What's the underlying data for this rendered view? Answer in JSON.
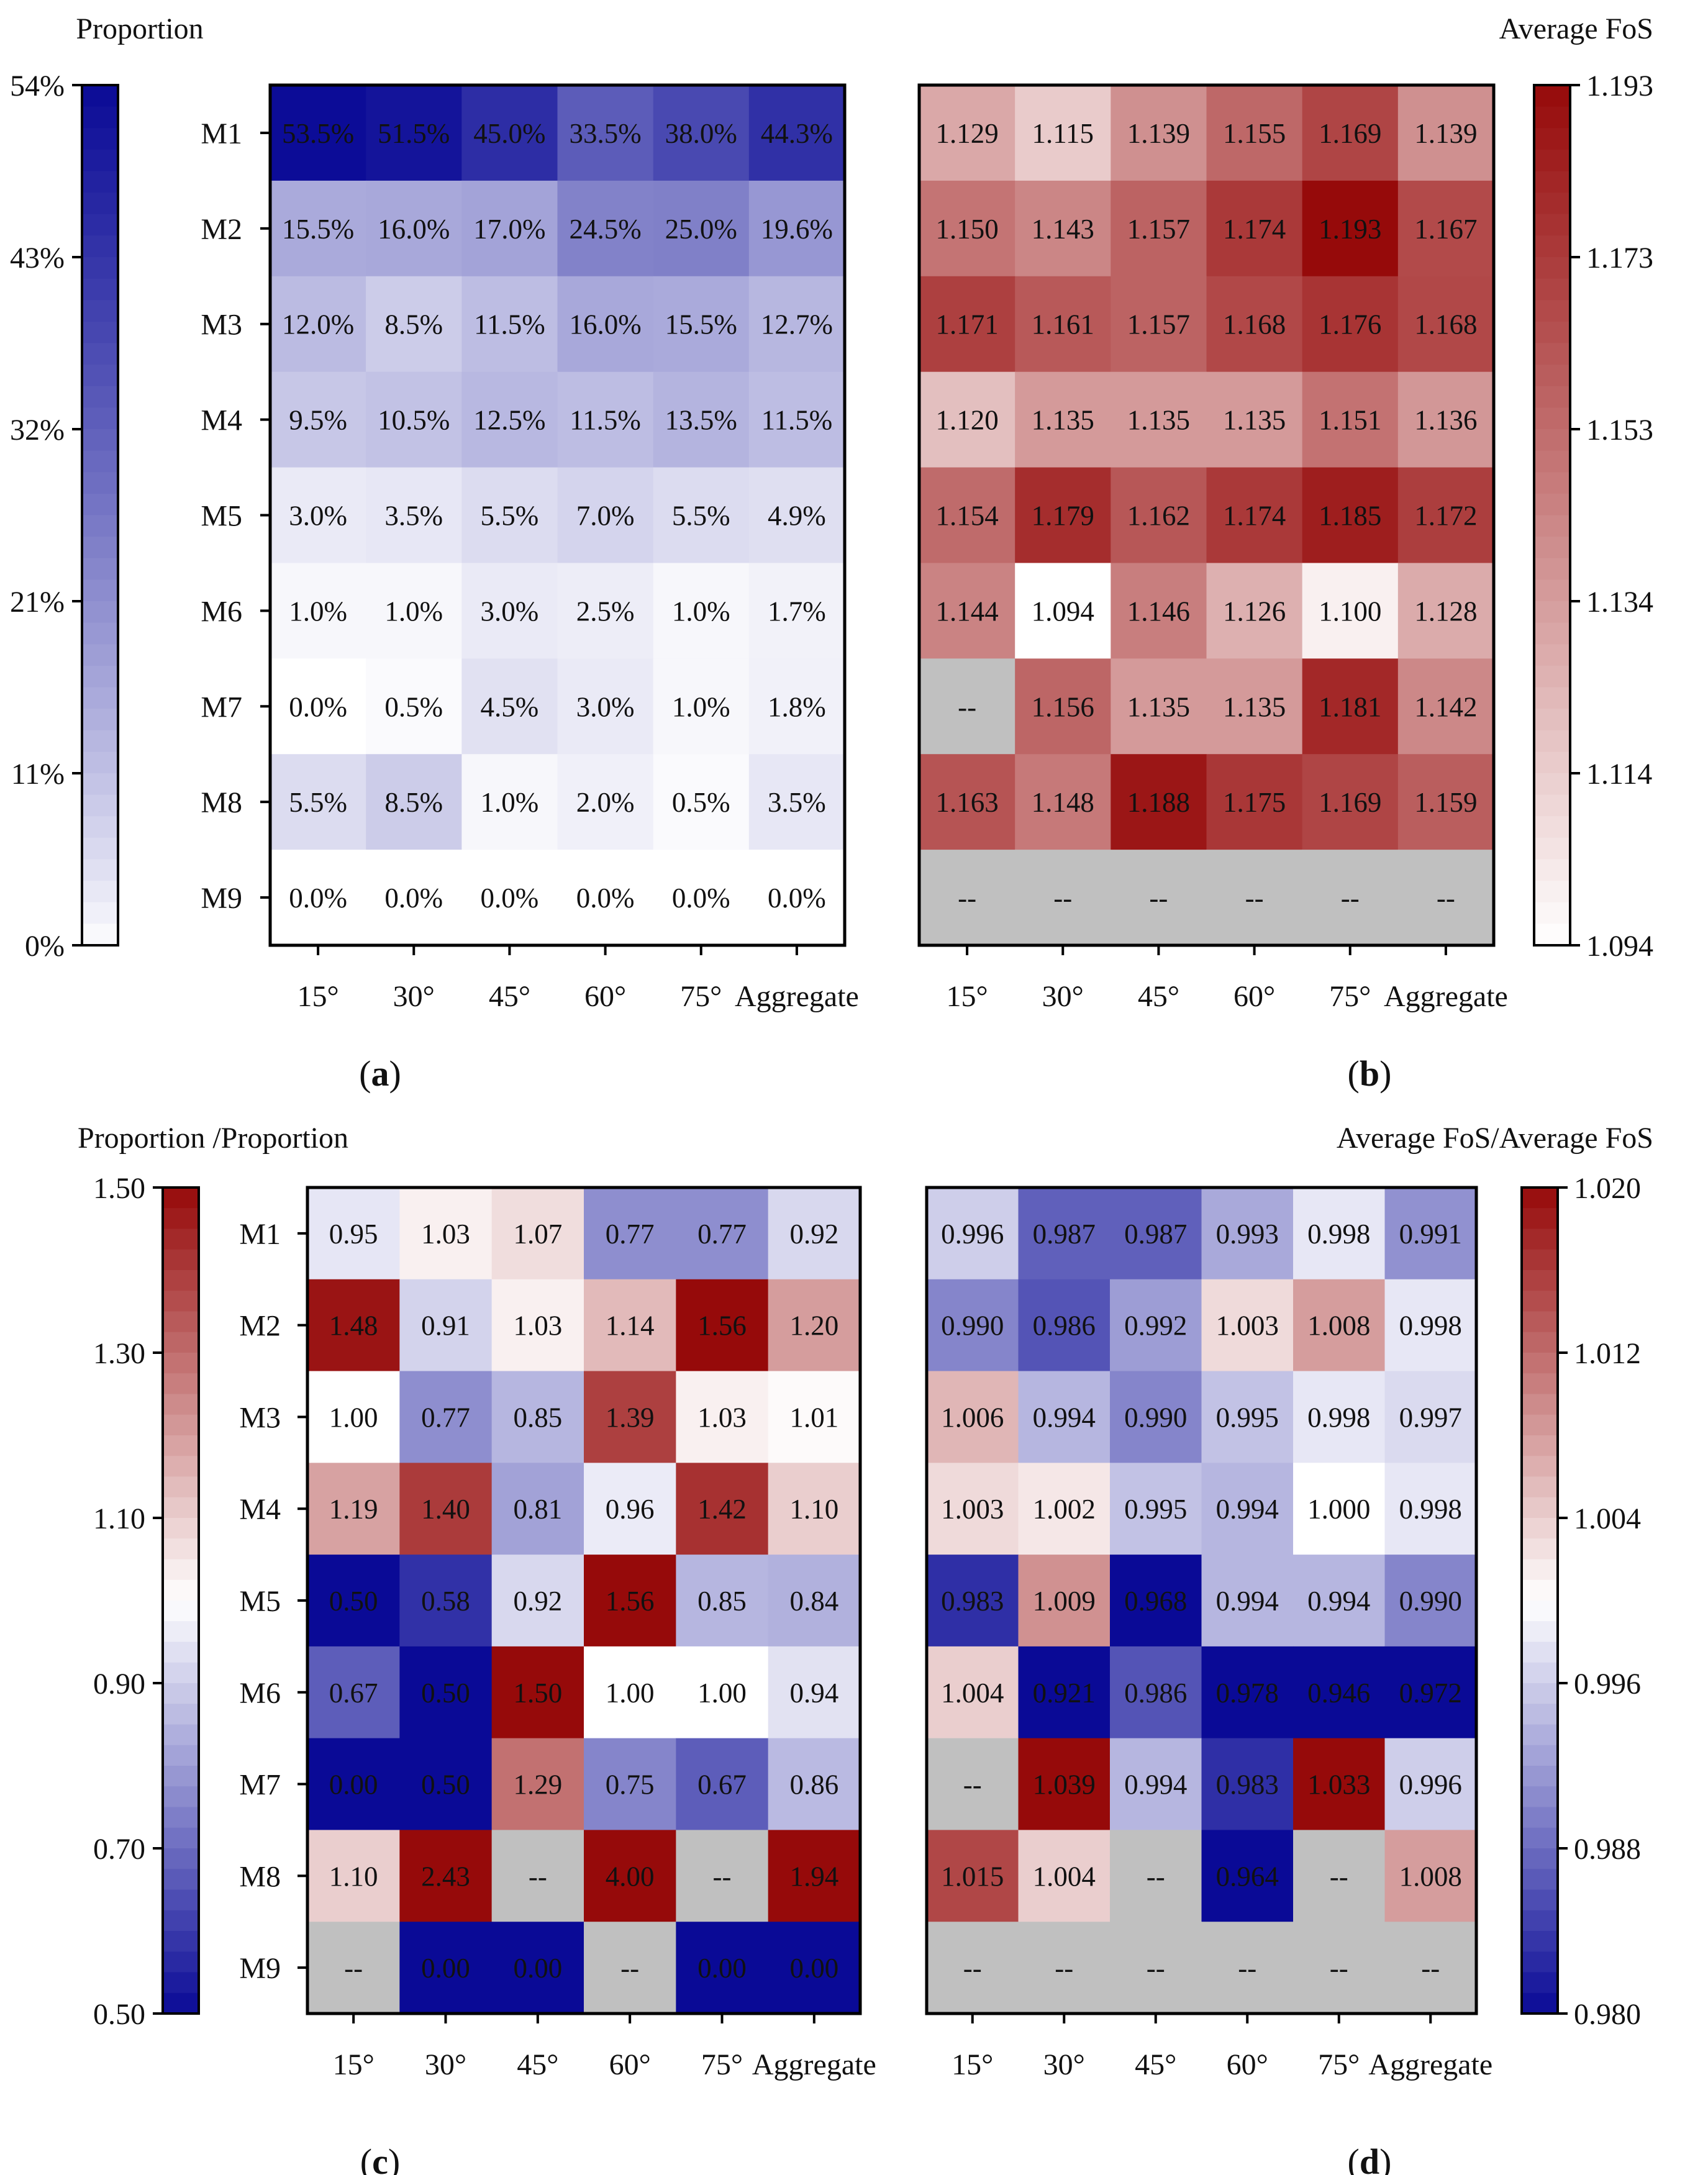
{
  "rows": [
    "M1",
    "M2",
    "M3",
    "M4",
    "M5",
    "M6",
    "M7",
    "M8",
    "M9"
  ],
  "cols": [
    "15°",
    "30°",
    "45°",
    "60°",
    "75°",
    "Aggregate"
  ],
  "chart_data": [
    {
      "panel": "a",
      "panel_label": "(a)",
      "type": "heatmap",
      "colorbar_title": "Proportion",
      "colorbar_ticks": [
        "54%",
        "43%",
        "32%",
        "21%",
        "11%",
        "0%"
      ],
      "colorbar_range": [
        0,
        54
      ],
      "colorbar_side": "left",
      "colormap": "white-blue",
      "values": [
        [
          53.5,
          51.5,
          45.0,
          33.5,
          38.0,
          44.3
        ],
        [
          15.5,
          16.0,
          17.0,
          24.5,
          25.0,
          19.6
        ],
        [
          12.0,
          8.5,
          11.5,
          16.0,
          15.5,
          12.7
        ],
        [
          9.5,
          10.5,
          12.5,
          11.5,
          13.5,
          11.5
        ],
        [
          3.0,
          3.5,
          5.5,
          7.0,
          5.5,
          4.9
        ],
        [
          1.0,
          1.0,
          3.0,
          2.5,
          1.0,
          1.7
        ],
        [
          0.0,
          0.5,
          4.5,
          3.0,
          1.0,
          1.8
        ],
        [
          5.5,
          8.5,
          1.0,
          2.0,
          0.5,
          3.5
        ],
        [
          0.0,
          0.0,
          0.0,
          0.0,
          0.0,
          0.0
        ]
      ],
      "labels": [
        [
          "53.5%",
          "51.5%",
          "45.0%",
          "33.5%",
          "38.0%",
          "44.3%"
        ],
        [
          "15.5%",
          "16.0%",
          "17.0%",
          "24.5%",
          "25.0%",
          "19.6%"
        ],
        [
          "12.0%",
          "8.5%",
          "11.5%",
          "16.0%",
          "15.5%",
          "12.7%"
        ],
        [
          "9.5%",
          "10.5%",
          "12.5%",
          "11.5%",
          "13.5%",
          "11.5%"
        ],
        [
          "3.0%",
          "3.5%",
          "5.5%",
          "7.0%",
          "5.5%",
          "4.9%"
        ],
        [
          "1.0%",
          "1.0%",
          "3.0%",
          "2.5%",
          "1.0%",
          "1.7%"
        ],
        [
          "0.0%",
          "0.5%",
          "4.5%",
          "3.0%",
          "1.0%",
          "1.8%"
        ],
        [
          "5.5%",
          "8.5%",
          "1.0%",
          "2.0%",
          "0.5%",
          "3.5%"
        ],
        [
          "0.0%",
          "0.0%",
          "0.0%",
          "0.0%",
          "0.0%",
          "0.0%"
        ]
      ]
    },
    {
      "panel": "b",
      "panel_label": "(b)",
      "type": "heatmap",
      "colorbar_title": "Average FoS",
      "colorbar_ticks": [
        "1.193",
        "1.173",
        "1.153",
        "1.134",
        "1.114",
        "1.094"
      ],
      "colorbar_range": [
        1.094,
        1.193
      ],
      "colorbar_side": "right",
      "colormap": "white-red",
      "values": [
        [
          1.129,
          1.115,
          1.139,
          1.155,
          1.169,
          1.139
        ],
        [
          1.15,
          1.143,
          1.157,
          1.174,
          1.193,
          1.167
        ],
        [
          1.171,
          1.161,
          1.157,
          1.168,
          1.176,
          1.168
        ],
        [
          1.12,
          1.135,
          1.135,
          1.135,
          1.151,
          1.136
        ],
        [
          1.154,
          1.179,
          1.162,
          1.174,
          1.185,
          1.172
        ],
        [
          1.144,
          1.094,
          1.146,
          1.126,
          1.1,
          1.128
        ],
        [
          null,
          1.156,
          1.135,
          1.135,
          1.181,
          1.142
        ],
        [
          1.163,
          1.148,
          1.188,
          1.175,
          1.169,
          1.159
        ],
        [
          null,
          null,
          null,
          null,
          null,
          null
        ]
      ],
      "labels": [
        [
          "1.129",
          "1.115",
          "1.139",
          "1.155",
          "1.169",
          "1.139"
        ],
        [
          "1.150",
          "1.143",
          "1.157",
          "1.174",
          "1.193",
          "1.167"
        ],
        [
          "1.171",
          "1.161",
          "1.157",
          "1.168",
          "1.176",
          "1.168"
        ],
        [
          "1.120",
          "1.135",
          "1.135",
          "1.135",
          "1.151",
          "1.136"
        ],
        [
          "1.154",
          "1.179",
          "1.162",
          "1.174",
          "1.185",
          "1.172"
        ],
        [
          "1.144",
          "1.094",
          "1.146",
          "1.126",
          "1.100",
          "1.128"
        ],
        [
          "--",
          "1.156",
          "1.135",
          "1.135",
          "1.181",
          "1.142"
        ],
        [
          "1.163",
          "1.148",
          "1.188",
          "1.175",
          "1.169",
          "1.159"
        ],
        [
          "--",
          "--",
          "--",
          "--",
          "--",
          "--"
        ]
      ]
    },
    {
      "panel": "c",
      "panel_label": "(c)",
      "type": "heatmap",
      "colorbar_title": "Proportion /Proportion",
      "colorbar_ticks": [
        "1.50",
        "1.30",
        "1.10",
        "0.90",
        "0.70",
        "0.50"
      ],
      "colorbar_range": [
        0.5,
        1.5
      ],
      "colorbar_side": "left",
      "colormap": "blue-white-red",
      "diverging_center": 1.0,
      "values": [
        [
          0.95,
          1.03,
          1.07,
          0.77,
          0.77,
          0.92
        ],
        [
          1.48,
          0.91,
          1.03,
          1.14,
          1.56,
          1.2
        ],
        [
          1.0,
          0.77,
          0.85,
          1.39,
          1.03,
          1.01
        ],
        [
          1.19,
          1.4,
          0.81,
          0.96,
          1.42,
          1.1
        ],
        [
          0.5,
          0.58,
          0.92,
          1.56,
          0.85,
          0.84
        ],
        [
          0.67,
          0.5,
          1.5,
          1.0,
          1.0,
          0.94
        ],
        [
          0.0,
          0.5,
          1.29,
          0.75,
          0.67,
          0.86
        ],
        [
          1.1,
          2.43,
          null,
          4.0,
          null,
          1.94
        ],
        [
          null,
          0.0,
          0.0,
          null,
          0.0,
          0.0
        ]
      ],
      "labels": [
        [
          "0.95",
          "1.03",
          "1.07",
          "0.77",
          "0.77",
          "0.92"
        ],
        [
          "1.48",
          "0.91",
          "1.03",
          "1.14",
          "1.56",
          "1.20"
        ],
        [
          "1.00",
          "0.77",
          "0.85",
          "1.39",
          "1.03",
          "1.01"
        ],
        [
          "1.19",
          "1.40",
          "0.81",
          "0.96",
          "1.42",
          "1.10"
        ],
        [
          "0.50",
          "0.58",
          "0.92",
          "1.56",
          "0.85",
          "0.84"
        ],
        [
          "0.67",
          "0.50",
          "1.50",
          "1.00",
          "1.00",
          "0.94"
        ],
        [
          "0.00",
          "0.50",
          "1.29",
          "0.75",
          "0.67",
          "0.86"
        ],
        [
          "1.10",
          "2.43",
          "--",
          "4.00",
          "--",
          "1.94"
        ],
        [
          "--",
          "0.00",
          "0.00",
          "--",
          "0.00",
          "0.00"
        ]
      ]
    },
    {
      "panel": "d",
      "panel_label": "(d)",
      "type": "heatmap",
      "colorbar_title": "Average FoS/Average FoS",
      "colorbar_ticks": [
        "1.020",
        "1.012",
        "1.004",
        "0.996",
        "0.988",
        "0.980"
      ],
      "colorbar_range": [
        0.98,
        1.02
      ],
      "colorbar_side": "right",
      "colormap": "blue-white-red",
      "diverging_center": 1.0,
      "values": [
        [
          0.996,
          0.987,
          0.987,
          0.993,
          0.998,
          0.991
        ],
        [
          0.99,
          0.986,
          0.992,
          1.003,
          1.008,
          0.998
        ],
        [
          1.006,
          0.994,
          0.99,
          0.995,
          0.998,
          0.997
        ],
        [
          1.003,
          1.002,
          0.995,
          0.994,
          1.0,
          0.998
        ],
        [
          0.983,
          1.009,
          0.968,
          0.994,
          0.994,
          0.99
        ],
        [
          1.004,
          0.921,
          0.986,
          0.978,
          0.946,
          0.972
        ],
        [
          null,
          1.039,
          0.994,
          0.983,
          1.033,
          0.996
        ],
        [
          1.015,
          1.004,
          null,
          0.964,
          null,
          1.008
        ],
        [
          null,
          null,
          null,
          null,
          null,
          null
        ]
      ],
      "labels": [
        [
          "0.996",
          "0.987",
          "0.987",
          "0.993",
          "0.998",
          "0.991"
        ],
        [
          "0.990",
          "0.986",
          "0.992",
          "1.003",
          "1.008",
          "0.998"
        ],
        [
          "1.006",
          "0.994",
          "0.990",
          "0.995",
          "0.998",
          "0.997"
        ],
        [
          "1.003",
          "1.002",
          "0.995",
          "0.994",
          "1.000",
          "0.998"
        ],
        [
          "0.983",
          "1.009",
          "0.968",
          "0.994",
          "0.994",
          "0.990"
        ],
        [
          "1.004",
          "0.921",
          "0.986",
          "0.978",
          "0.946",
          "0.972"
        ],
        [
          "--",
          "1.039",
          "0.994",
          "0.983",
          "1.033",
          "0.996"
        ],
        [
          "1.015",
          "1.004",
          "--",
          "0.964",
          "--",
          "1.008"
        ],
        [
          "--",
          "--",
          "--",
          "--",
          "--",
          "--"
        ]
      ]
    }
  ],
  "colors": {
    "blue_max": "#0a0a96",
    "red_max": "#960a0a",
    "white": "#ffffff",
    "missing": "#c0c0c0"
  }
}
